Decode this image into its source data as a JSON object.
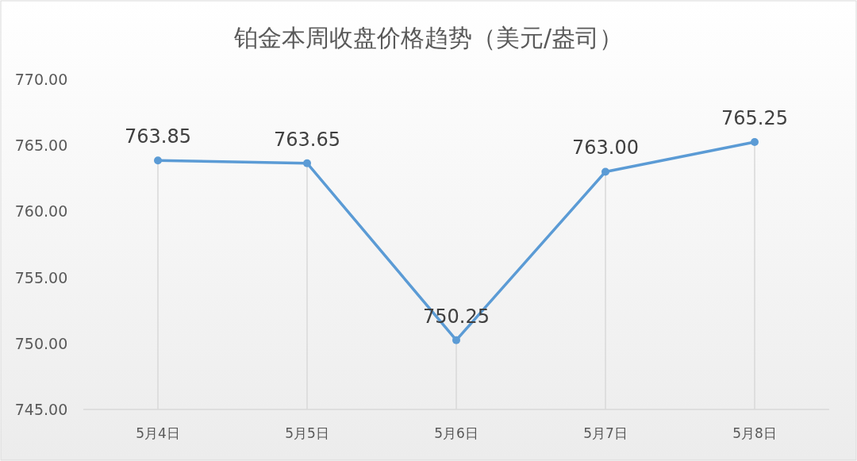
{
  "chart_data": {
    "type": "line",
    "title": "铂金本周收盘价格趋势（美元/盎司）",
    "categories": [
      "5月4日",
      "5月5日",
      "5月6日",
      "5月7日",
      "5月8日"
    ],
    "series": [
      {
        "color": "#5b9bd5",
        "values": [
          763.85,
          763.65,
          750.25,
          763.0,
          765.25
        ],
        "value_labels": [
          "763.85",
          "763.65",
          "750.25",
          "763.00",
          "765.25"
        ]
      }
    ],
    "ylim": [
      745,
      770
    ],
    "yticks": [
      {
        "value": 745,
        "label": "745.00"
      },
      {
        "value": 750,
        "label": "750.00"
      },
      {
        "value": 755,
        "label": "755.00"
      },
      {
        "value": 760,
        "label": "760.00"
      },
      {
        "value": 765,
        "label": "765.00"
      },
      {
        "value": 770,
        "label": "770.00"
      }
    ],
    "grid": "x",
    "marker": "circle"
  }
}
